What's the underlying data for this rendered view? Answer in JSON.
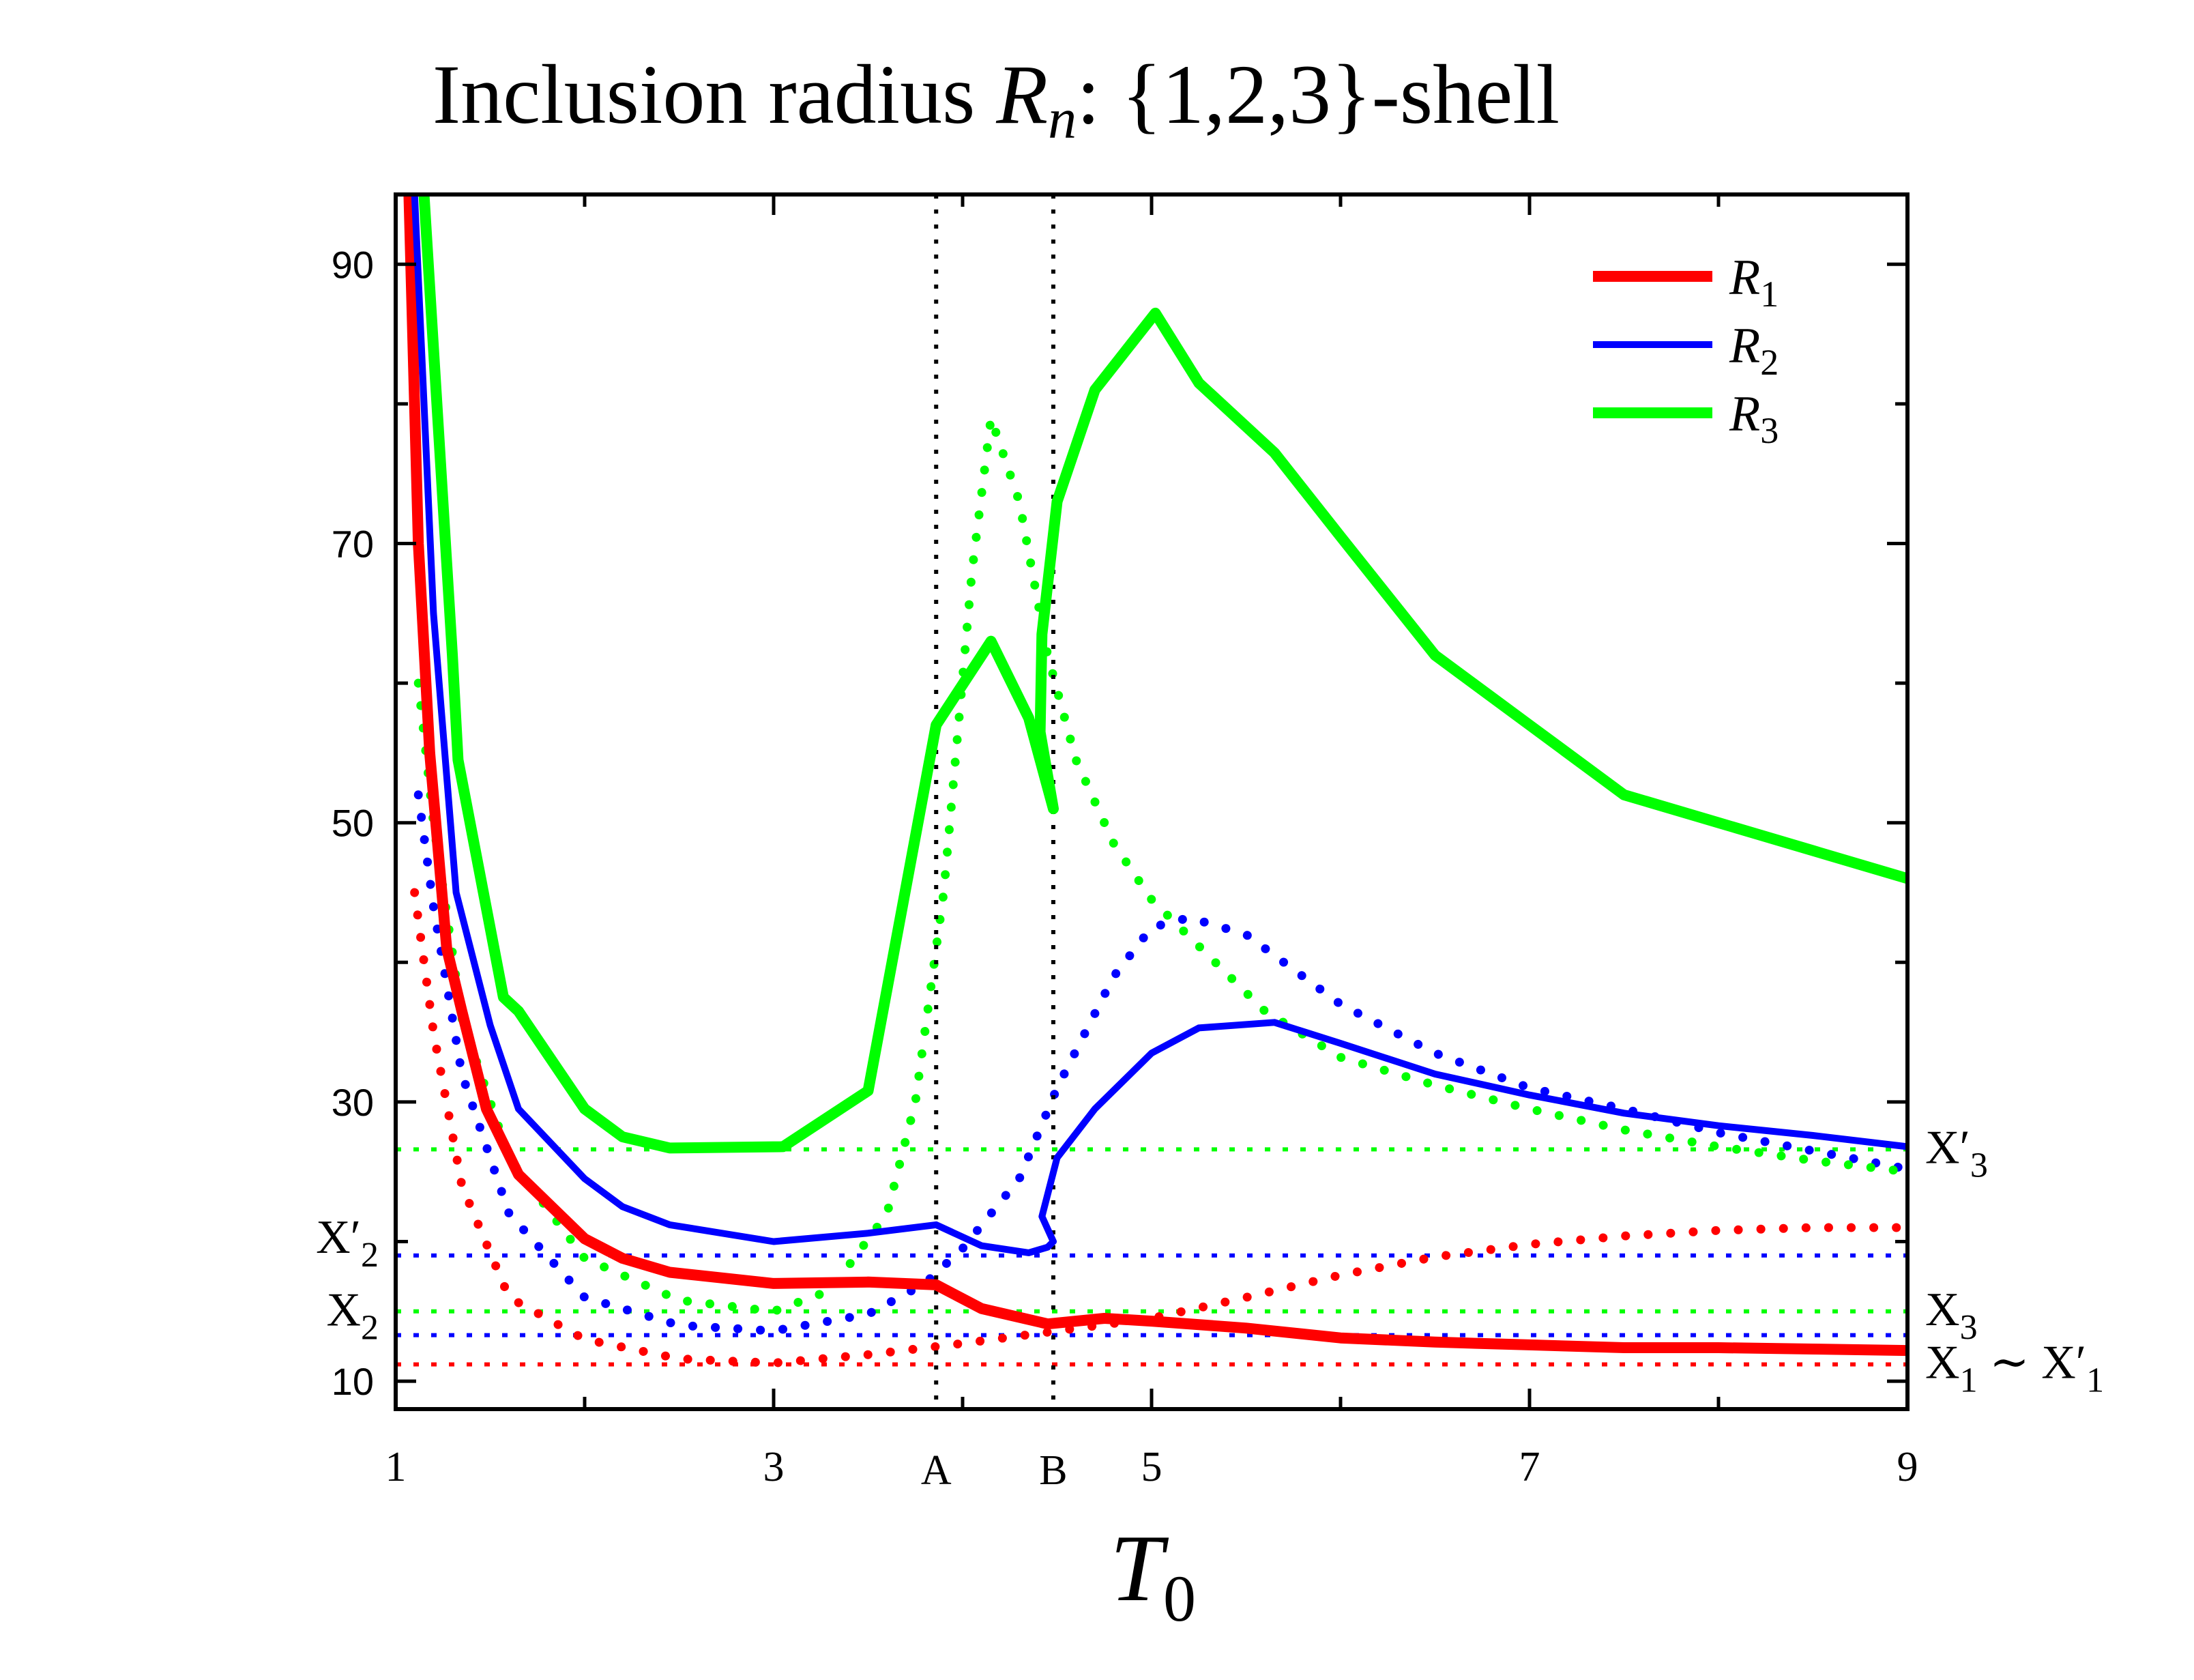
{
  "chart_data": {
    "type": "line",
    "title": "Inclusion radius R_n: {1,2,3}-shell",
    "title_prefix": "Inclusion radius ",
    "title_math": "R",
    "title_sub": "n",
    "title_suffix": ": {1,2,3}-shell",
    "xlabel": "T",
    "xlabel_sub": "0",
    "ylabel": "",
    "xlim": [
      1,
      9
    ],
    "ylim": [
      8,
      95
    ],
    "xticks_labeled": [
      {
        "value": 1,
        "label": "1"
      },
      {
        "value": 3,
        "label": "3"
      },
      {
        "value": 5,
        "label": "5"
      },
      {
        "value": 7,
        "label": "7"
      },
      {
        "value": 9,
        "label": "9"
      }
    ],
    "xticks_minor": [
      2,
      4,
      6,
      8
    ],
    "yticks_labeled": [
      {
        "value": 10,
        "label": "10"
      },
      {
        "value": 30,
        "label": "30"
      },
      {
        "value": 50,
        "label": "50"
      },
      {
        "value": 70,
        "label": "70"
      },
      {
        "value": 90,
        "label": "90"
      }
    ],
    "yticks_minor": [
      20,
      40,
      60,
      80
    ],
    "vertical_markers": [
      {
        "x": 3.86,
        "label": "A"
      },
      {
        "x": 4.48,
        "label": "B"
      }
    ],
    "series": [
      {
        "name": "R1",
        "label_base": "R",
        "label_sub": "1",
        "color": "#ff0000",
        "style": "solid",
        "weight": "thick",
        "x": [
          1.07,
          1.12,
          1.18,
          1.27,
          1.35,
          1.48,
          1.65,
          2.0,
          2.2,
          2.45,
          3.0,
          3.5,
          3.86,
          4.1,
          4.45,
          4.75,
          5.0,
          5.5,
          6.0,
          6.5,
          7.0,
          7.5,
          8.0,
          8.5,
          9.0
        ],
        "y": [
          95,
          70,
          55,
          41,
          36.5,
          29.5,
          24.8,
          20.2,
          18.8,
          17.8,
          17.0,
          17.1,
          16.9,
          15.2,
          14.1,
          14.5,
          14.3,
          13.8,
          13.1,
          12.8,
          12.6,
          12.4,
          12.4,
          12.3,
          12.2
        ]
      },
      {
        "name": "R2",
        "label_base": "R",
        "label_sub": "2",
        "color": "#0000ff",
        "style": "solid",
        "weight": "medium",
        "x": [
          1.1,
          1.2,
          1.32,
          1.5,
          1.65,
          2.0,
          2.2,
          2.45,
          3.0,
          3.5,
          3.86,
          4.1,
          4.35,
          4.45,
          4.48,
          4.42,
          4.5,
          4.7,
          5.0,
          5.25,
          5.65,
          6.0,
          6.5,
          7.0,
          7.5,
          8.0,
          8.5,
          9.0
        ],
        "y": [
          95,
          65,
          45,
          35.5,
          29.5,
          24.5,
          22.5,
          21.2,
          20.0,
          20.6,
          21.2,
          19.7,
          19.2,
          19.6,
          20.0,
          21.8,
          26.0,
          29.5,
          33.5,
          35.3,
          35.7,
          34.2,
          32.0,
          30.5,
          29.2,
          28.3,
          27.6,
          26.8
        ]
      },
      {
        "name": "R3",
        "label_base": "R",
        "label_sub": "3",
        "color": "#00ff00",
        "style": "solid",
        "weight": "thick",
        "x": [
          1.15,
          1.3,
          1.33,
          1.57,
          1.65,
          2.0,
          2.2,
          2.45,
          3.05,
          3.5,
          3.86,
          4.15,
          4.35,
          4.48,
          4.41,
          4.42,
          4.5,
          4.7,
          5.02,
          5.25,
          5.65,
          6.0,
          6.5,
          7.0,
          7.5,
          8.0,
          8.5,
          9.0
        ],
        "y": [
          95,
          62,
          54.5,
          37.5,
          36.5,
          29.5,
          27.5,
          26.7,
          26.8,
          30.8,
          57.0,
          63.0,
          57.5,
          51.0,
          56.5,
          63.5,
          73.0,
          81.0,
          86.5,
          81.5,
          76.5,
          70.5,
          62.0,
          57.0,
          52.0,
          50.0,
          48.0,
          46.0
        ]
      },
      {
        "name": "R1-dotted",
        "color": "#ff0000",
        "style": "dotted",
        "x": [
          1.1,
          1.2,
          1.35,
          1.6,
          2.0,
          2.5,
          3.0,
          3.5,
          4.0,
          4.5,
          5.0,
          5.5,
          6.0,
          6.5,
          7.0,
          7.5,
          8.0,
          8.5,
          9.0
        ],
        "y": [
          45,
          35,
          24,
          16,
          13.0,
          11.6,
          11.3,
          11.9,
          12.7,
          13.6,
          14.5,
          16.0,
          17.6,
          18.9,
          19.8,
          20.4,
          20.8,
          21.0,
          21.0
        ]
      },
      {
        "name": "R2-dotted",
        "color": "#0000ff",
        "style": "dotted",
        "x": [
          1.12,
          1.2,
          1.35,
          1.6,
          2.0,
          2.5,
          3.0,
          3.5,
          3.8,
          4.0,
          4.3,
          4.5,
          4.8,
          5.0,
          5.2,
          5.5,
          6.0,
          6.5,
          7.0,
          7.5,
          8.0,
          8.5,
          9.0
        ],
        "y": [
          52,
          44,
          32,
          22,
          16.0,
          14.0,
          13.6,
          14.8,
          17.0,
          19.5,
          24.5,
          31.0,
          39.0,
          42.5,
          43.2,
          42.0,
          37.0,
          33.5,
          31.0,
          29.5,
          27.8,
          26.5,
          25.2
        ]
      },
      {
        "name": "R3-dotted",
        "color": "#00ff00",
        "style": "dotted",
        "x": [
          1.12,
          1.2,
          1.35,
          1.6,
          2.0,
          2.5,
          3.0,
          3.3,
          3.6,
          3.75,
          3.9,
          4.05,
          4.15,
          4.3,
          4.45,
          4.6,
          4.8,
          5.0,
          5.3,
          5.6,
          6.0,
          6.5,
          7.0,
          7.5,
          8.0,
          8.5,
          9.0
        ],
        "y": [
          60,
          50,
          36,
          26,
          18.8,
          15.8,
          15.0,
          16.5,
          22.0,
          30.0,
          45.0,
          68.0,
          79.0,
          73.0,
          62.0,
          54.5,
          48.5,
          44.5,
          40.5,
          36.5,
          33.2,
          31.2,
          29.5,
          28.0,
          26.8,
          25.8,
          25.0
        ]
      },
      {
        "name": "X1-level",
        "color": "#ff0000",
        "style": "dotted-fine",
        "x": [
          1,
          9
        ],
        "y": [
          11.2,
          11.2
        ]
      },
      {
        "name": "X2-level",
        "color": "#0000ff",
        "style": "dotted-fine",
        "x": [
          1,
          9
        ],
        "y": [
          13.3,
          13.3
        ]
      },
      {
        "name": "X3-level",
        "color": "#00ff00",
        "style": "dotted-fine",
        "x": [
          1,
          9
        ],
        "y": [
          15.0,
          15.0
        ]
      },
      {
        "name": "X2prime-level",
        "color": "#0000ff",
        "style": "dotted-fine",
        "x": [
          1,
          9
        ],
        "y": [
          19.0,
          19.0
        ]
      },
      {
        "name": "X3prime-level",
        "color": "#00ff00",
        "style": "dotted-fine",
        "x": [
          1,
          9
        ],
        "y": [
          26.6,
          26.6
        ]
      }
    ],
    "right_labels": [
      {
        "y": 26.6,
        "base": "X",
        "prime": "′",
        "sub": "3"
      },
      {
        "y": 15.0,
        "base": "X",
        "prime": "",
        "sub": "3"
      },
      {
        "y": 11.2,
        "base": "X",
        "prime": "",
        "sub": "1",
        "tilde": " ∼ ",
        "base2": "X",
        "prime2": "′",
        "sub2": "1"
      }
    ],
    "left_labels": [
      {
        "y": 19.0,
        "base": "X",
        "prime": "′",
        "sub": "2"
      },
      {
        "y": 13.3,
        "base": "X",
        "prime": "",
        "sub": "2"
      }
    ],
    "legend": {
      "position": "top-right"
    }
  }
}
